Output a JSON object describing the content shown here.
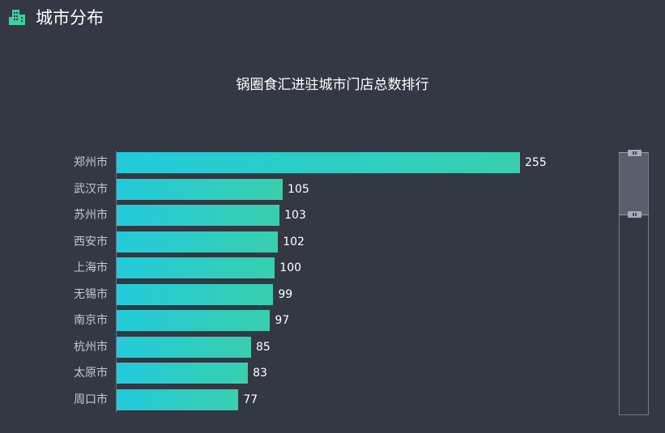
{
  "header": {
    "icon": "building-icon",
    "title": "城市分布",
    "icon_color": "#3ecf9e"
  },
  "chart_data": {
    "type": "bar",
    "orientation": "horizontal",
    "title": "锅圈食汇进驻城市门店总数排行",
    "categories": [
      "郑州市",
      "武汉市",
      "苏州市",
      "西安市",
      "上海市",
      "无锡市",
      "南京市",
      "杭州市",
      "太原市",
      "周口市"
    ],
    "values": [
      255,
      105,
      103,
      102,
      100,
      99,
      97,
      85,
      83,
      77
    ],
    "xlabel": "",
    "ylabel": "",
    "grid": false,
    "data_labels": true,
    "colors": {
      "gradient_start": "#22cbdc",
      "gradient_end": "#38cfae",
      "background": "#333842"
    },
    "datazoom": {
      "orientation": "vertical",
      "position": "right",
      "start_percent": 0,
      "end_percent": 24
    }
  }
}
